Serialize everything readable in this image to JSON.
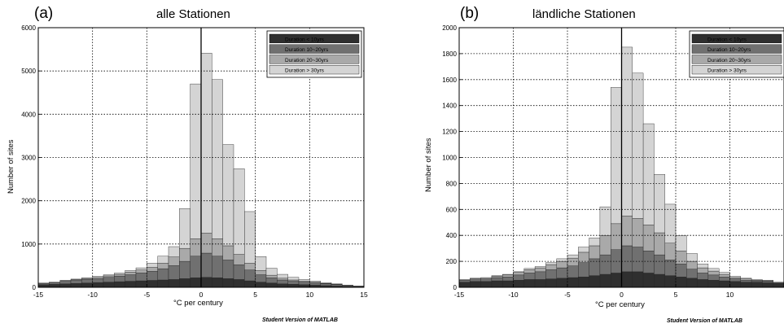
{
  "panels": [
    {
      "letter": "(a)",
      "title": "alle Stationen",
      "watermark": "Student Version of MATLAB"
    },
    {
      "letter": "(b)",
      "title": "ländliche Stationen",
      "watermark": "Student Version of MATLAB"
    }
  ],
  "colors": {
    "series": [
      "#2f2f2f",
      "#707070",
      "#a9a9a9",
      "#d4d4d4"
    ],
    "edge": "#222222",
    "grid": "#000000",
    "zero_line": "#000000"
  },
  "chart_data": [
    {
      "type": "bar",
      "stacked": true,
      "title": "alle Stationen",
      "xlabel": "°C per century",
      "ylabel": "Number of sites",
      "xlim": [
        -15,
        15
      ],
      "ylim": [
        0,
        6000
      ],
      "xticks": [
        "-15",
        "-10",
        "-5",
        "0",
        "5",
        "10",
        "15"
      ],
      "yticks": [
        "0",
        "1000",
        "2000",
        "3000",
        "4000",
        "5000",
        "6000"
      ],
      "grid": true,
      "legend_position": "top-right",
      "bin_width": 1,
      "x": [
        -14.5,
        -13.5,
        -12.5,
        -11.5,
        -10.5,
        -9.5,
        -8.5,
        -7.5,
        -6.5,
        -5.5,
        -4.5,
        -3.5,
        -2.5,
        -1.5,
        -0.5,
        0.5,
        1.5,
        2.5,
        3.5,
        4.5,
        5.5,
        6.5,
        7.5,
        8.5,
        9.5,
        10.5,
        11.5,
        12.5,
        13.5,
        14.5
      ],
      "series": [
        {
          "name": "Duration < 10yrs",
          "values": [
            60,
            70,
            80,
            90,
            100,
            110,
            120,
            130,
            140,
            150,
            160,
            170,
            180,
            200,
            220,
            230,
            220,
            200,
            180,
            150,
            120,
            100,
            80,
            70,
            60,
            50,
            40,
            30,
            20,
            10
          ]
        },
        {
          "name": "Duration 10~20yrs",
          "values": [
            30,
            40,
            60,
            70,
            80,
            90,
            110,
            130,
            150,
            180,
            210,
            260,
            320,
            400,
            500,
            560,
            500,
            430,
            340,
            250,
            170,
            120,
            90,
            70,
            60,
            50,
            40,
            30,
            20,
            10
          ]
        },
        {
          "name": "Duration 20~30yrs",
          "values": [
            10,
            10,
            15,
            20,
            25,
            30,
            35,
            40,
            60,
            70,
            90,
            130,
            200,
            300,
            400,
            460,
            400,
            330,
            240,
            160,
            100,
            60,
            40,
            30,
            20,
            15,
            10,
            10,
            5,
            5
          ]
        },
        {
          "name": "Duration > 30yrs",
          "values": [
            0,
            0,
            5,
            10,
            15,
            20,
            25,
            30,
            40,
            50,
            100,
            160,
            240,
            920,
            3580,
            4160,
            3680,
            2340,
            1980,
            1190,
            320,
            160,
            90,
            60,
            40,
            30,
            20,
            10,
            5,
            5
          ]
        }
      ]
    },
    {
      "type": "bar",
      "stacked": true,
      "title": "ländliche Stationen",
      "xlabel": "°C per century",
      "ylabel": "Number of sites",
      "xlim": [
        -15,
        15
      ],
      "ylim": [
        0,
        2000
      ],
      "xticks": [
        "-15",
        "-10",
        "-5",
        "0",
        "5",
        "10"
      ],
      "yticks": [
        "0",
        "200",
        "400",
        "600",
        "800",
        "1000",
        "1200",
        "1400",
        "1600",
        "1800",
        "2000"
      ],
      "grid": true,
      "legend_position": "top-right",
      "bin_width": 1,
      "x": [
        -14.5,
        -13.5,
        -12.5,
        -11.5,
        -10.5,
        -9.5,
        -8.5,
        -7.5,
        -6.5,
        -5.5,
        -4.5,
        -3.5,
        -2.5,
        -1.5,
        -0.5,
        0.5,
        1.5,
        2.5,
        3.5,
        4.5,
        5.5,
        6.5,
        7.5,
        8.5,
        9.5,
        10.5,
        11.5,
        12.5,
        13.5,
        14.5
      ],
      "series": [
        {
          "name": "Duration < 10yrs",
          "values": [
            40,
            45,
            45,
            50,
            50,
            55,
            60,
            60,
            65,
            70,
            75,
            80,
            90,
            100,
            110,
            120,
            120,
            110,
            100,
            90,
            80,
            70,
            60,
            55,
            50,
            45,
            40,
            40,
            35,
            30
          ]
        },
        {
          "name": "Duration 10~20yrs",
          "values": [
            15,
            20,
            20,
            25,
            30,
            40,
            50,
            60,
            70,
            80,
            90,
            110,
            130,
            150,
            180,
            200,
            190,
            170,
            150,
            120,
            100,
            70,
            50,
            40,
            30,
            20,
            15,
            10,
            10,
            5
          ]
        },
        {
          "name": "Duration 20~30yrs",
          "values": [
            5,
            5,
            10,
            10,
            15,
            20,
            25,
            30,
            40,
            50,
            60,
            80,
            100,
            150,
            200,
            230,
            220,
            200,
            170,
            130,
            100,
            60,
            40,
            30,
            20,
            10,
            10,
            5,
            5,
            5
          ]
        },
        {
          "name": "Duration > 30yrs",
          "values": [
            0,
            0,
            0,
            5,
            5,
            5,
            10,
            10,
            15,
            20,
            25,
            40,
            60,
            220,
            1050,
            1300,
            1120,
            780,
            450,
            300,
            120,
            60,
            30,
            20,
            15,
            10,
            5,
            5,
            5,
            0
          ]
        }
      ]
    }
  ]
}
